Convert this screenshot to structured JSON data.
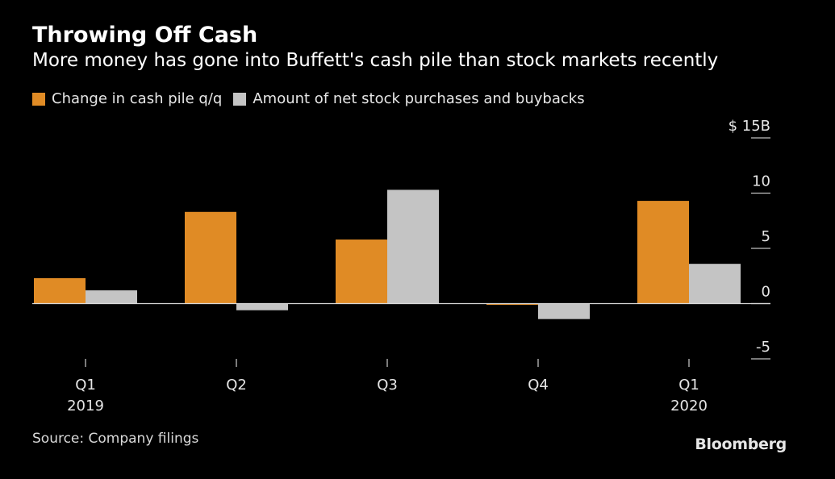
{
  "header": {
    "title": "Throwing Off Cash",
    "subtitle": "More money has gone into Buffett's cash pile than stock markets recently"
  },
  "legend": {
    "items": [
      {
        "label": "Change in cash pile q/q",
        "color": "#e08b25"
      },
      {
        "label": "Amount of net stock purchases and buybacks",
        "color": "#c4c4c4"
      }
    ]
  },
  "footer": {
    "source": "Source: Company filings",
    "brand": "Bloomberg"
  },
  "chart_data": {
    "type": "bar",
    "categories": [
      {
        "label": "Q1",
        "sublabel": "2019"
      },
      {
        "label": "Q2",
        "sublabel": ""
      },
      {
        "label": "Q3",
        "sublabel": ""
      },
      {
        "label": "Q4",
        "sublabel": ""
      },
      {
        "label": "Q1",
        "sublabel": "2020"
      }
    ],
    "series": [
      {
        "name": "Change in cash pile q/q",
        "color": "#e08b25",
        "values": [
          2.3,
          8.3,
          5.8,
          -0.1,
          9.3
        ]
      },
      {
        "name": "Amount of net stock purchases and buybacks",
        "color": "#c4c4c4",
        "values": [
          1.2,
          -0.6,
          10.3,
          -1.4,
          3.6
        ]
      }
    ],
    "yaxis": {
      "ticks": [
        {
          "value": 15,
          "label": "$ 15B"
        },
        {
          "value": 10,
          "label": "10"
        },
        {
          "value": 5,
          "label": "5"
        },
        {
          "value": 0,
          "label": "0"
        },
        {
          "value": -5,
          "label": "-5"
        }
      ],
      "range": [
        -5,
        15
      ],
      "position": "right"
    },
    "zero_line": true,
    "grid": false
  }
}
